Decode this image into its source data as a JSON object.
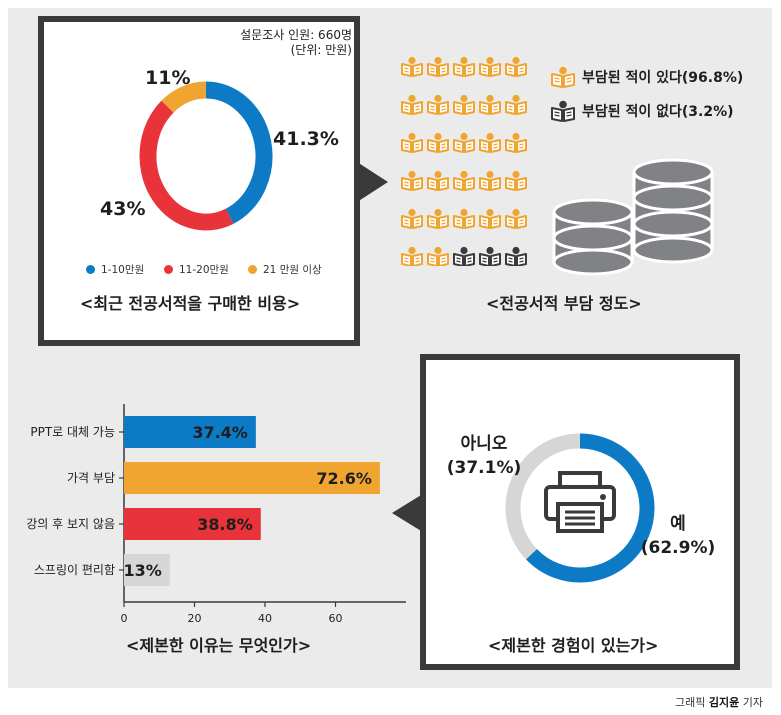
{
  "colors": {
    "blue": "#0d7ac6",
    "red": "#e8333a",
    "orange": "#f0a530",
    "gray": "#d6d6d6",
    "dark": "#3a3a3a",
    "cylinder": "#808285"
  },
  "icons": {
    "book_reader": "book-reader-icon",
    "coin_stack": "coin-stack-icon",
    "printer": "printer-icon"
  },
  "credit": {
    "prefix": "그래픽 ",
    "name": "김지윤",
    "suffix": " 기자"
  },
  "chart_data": [
    {
      "type": "pie",
      "variant": "donut",
      "title": "<최근 전공서적을 구매한 비용>",
      "note_line1": "설문조사 인원: 660명",
      "note_line2": "(단위: 만원)",
      "slices": [
        {
          "label": "1-10만원",
          "value": 41.3,
          "display": "41.3%",
          "color": "#0d7ac6"
        },
        {
          "label": "11-20만원",
          "value": 43,
          "display": "43%",
          "color": "#e8333a"
        },
        {
          "label": "21 만원 이상",
          "value": 11,
          "display": "11%",
          "color": "#f0a530"
        }
      ],
      "legend_position": "bottom"
    },
    {
      "type": "pictograph",
      "title": "<전공서적 부담 정도>",
      "grid": {
        "rows": 6,
        "cols": 5,
        "filled": 27
      },
      "categories": [
        {
          "label": "부담된 적이 있다(96.8%)",
          "value": 96.8,
          "color": "#f0a530"
        },
        {
          "label": "부담된 적이 없다(3.2%)",
          "value": 3.2,
          "color": "#3a3a3a"
        }
      ],
      "legend_position": "top-right"
    },
    {
      "type": "bar",
      "orientation": "horizontal",
      "title": "<제본한 이유는 무엇인가>",
      "categories": [
        "PPT로 대체 가능",
        "가격 부담",
        "강의 후 보지 않음",
        "스프링이 편리함"
      ],
      "values": [
        37.4,
        72.6,
        38.8,
        13
      ],
      "value_labels": [
        "37.4%",
        "72.6%",
        "38.8%",
        "13%"
      ],
      "colors": [
        "#0d7ac6",
        "#f0a530",
        "#e8333a",
        "#d6d6d6"
      ],
      "xlim": [
        0,
        80
      ],
      "xticks": [
        0,
        20,
        40,
        60
      ],
      "xtick_labels": [
        "0",
        "20",
        "40",
        "60"
      ],
      "grid": false
    },
    {
      "type": "pie",
      "variant": "donut",
      "title": "<제본한 경험이 있는가>",
      "slices": [
        {
          "label_line1": "예",
          "label_line2": "(62.9%)",
          "value": 62.9,
          "color": "#0d7ac6"
        },
        {
          "label_line1": "아니오",
          "label_line2": "(37.1%)",
          "value": 37.1,
          "color": "#d6d6d6"
        }
      ]
    }
  ]
}
